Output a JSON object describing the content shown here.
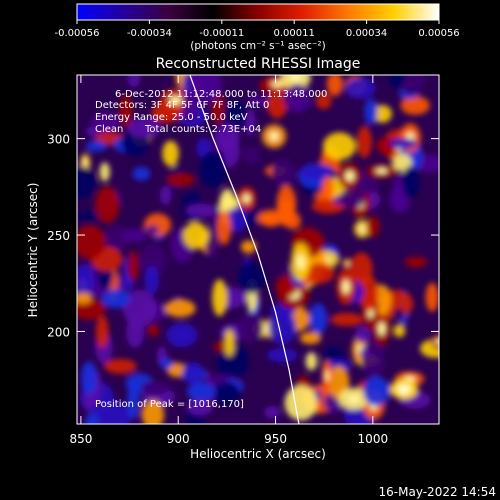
{
  "chart_data": {
    "type": "heatmap",
    "title": "Reconstructed RHESSI Image",
    "xlabel": "Heliocentric X (arcsec)",
    "ylabel": "Heliocentric Y (arcsec)",
    "xlim": [
      848,
      1034
    ],
    "ylim": [
      152,
      333
    ],
    "x_ticks": [
      850,
      900,
      950,
      1000
    ],
    "y_ticks": [
      200,
      250,
      300
    ],
    "colorbar": {
      "ticks": [
        "-0.00056",
        "-0.00034",
        "-0.00011",
        "0.00011",
        "0.00034",
        "0.00056"
      ],
      "range": [
        -0.00056,
        0.00056
      ],
      "unit_label": "(photons cm⁻² s⁻¹ asec⁻²)",
      "colormap": [
        "#0000ff",
        "#2200a0",
        "#3a0040",
        "#000000",
        "#8a0000",
        "#e02000",
        "#ff7a00",
        "#ffd000",
        "#ffffff"
      ]
    },
    "annotations": {
      "time_range": "6-Dec-2012 11:12:48.000 to 11:13:48.000",
      "detectors": "Detectors: 3F 4F 5F 6F 7F 8F, Att 0",
      "energy_range": "Energy Range: 25.0 - 50.0 keV",
      "clean": "Clean",
      "total_counts": "Total counts: 2.73E+04",
      "peak": "Position of Peak = [1016,170]"
    },
    "peak_position": [
      1016,
      170
    ],
    "limb_curve": {
      "x": [
        906,
        918,
        930,
        941,
        950,
        957,
        962
      ],
      "y": [
        333,
        300,
        270,
        240,
        210,
        180,
        152
      ]
    }
  },
  "footer": {
    "timestamp": "16-May-2022 14:54"
  }
}
